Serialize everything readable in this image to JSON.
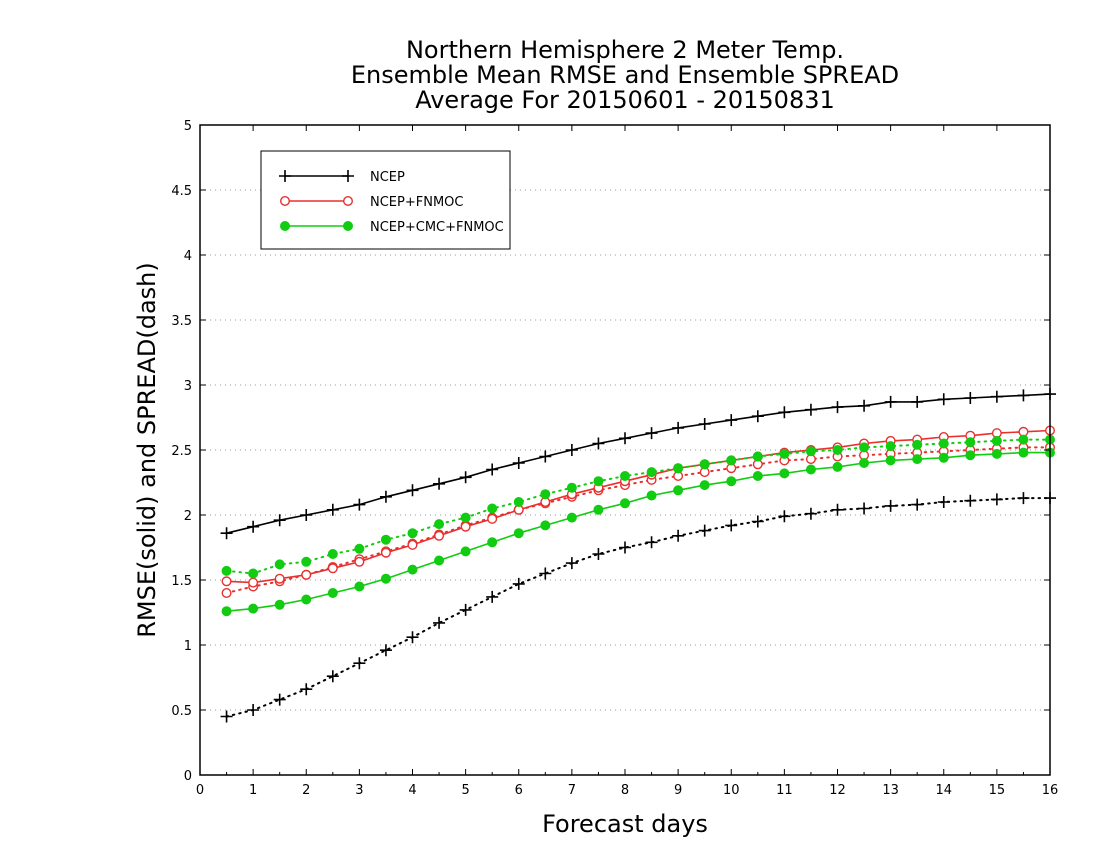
{
  "chart_data": {
    "type": "line",
    "title_lines": [
      "Northern Hemisphere 2 Meter Temp.",
      "Ensemble Mean RMSE and Ensemble SPREAD",
      "Average For 20150601 - 20150831"
    ],
    "xlabel": "Forecast days",
    "ylabel": "RMSE(solid) and SPREAD(dash)",
    "xlim": [
      0,
      16
    ],
    "ylim": [
      0,
      5
    ],
    "x_ticks": [
      "0",
      "1",
      "2",
      "3",
      "4",
      "5",
      "6",
      "7",
      "8",
      "9",
      "10",
      "11",
      "12",
      "13",
      "14",
      "15",
      "16"
    ],
    "y_ticks": [
      "0",
      "0.5",
      "1",
      "1.5",
      "2",
      "2.5",
      "3",
      "3.5",
      "4",
      "4.5",
      "5"
    ],
    "grid": true,
    "legend_position": "top-left",
    "x": [
      0.5,
      1,
      1.5,
      2,
      2.5,
      3,
      3.5,
      4,
      4.5,
      5,
      5.5,
      6,
      6.5,
      7,
      7.5,
      8,
      8.5,
      9,
      9.5,
      10,
      10.5,
      11,
      11.5,
      12,
      12.5,
      13,
      13.5,
      14,
      14.5,
      15,
      15.5,
      16
    ],
    "series": [
      {
        "name": "NCEP",
        "color": "#000000",
        "marker": "plus",
        "rmse": [
          1.86,
          1.91,
          1.96,
          2.0,
          2.04,
          2.08,
          2.14,
          2.19,
          2.24,
          2.29,
          2.35,
          2.4,
          2.45,
          2.5,
          2.55,
          2.59,
          2.63,
          2.67,
          2.7,
          2.73,
          2.76,
          2.79,
          2.81,
          2.83,
          2.84,
          2.87,
          2.87,
          2.89,
          2.9,
          2.91,
          2.92,
          2.93
        ],
        "spread": [
          0.45,
          0.5,
          0.58,
          0.66,
          0.76,
          0.86,
          0.96,
          1.06,
          1.17,
          1.27,
          1.37,
          1.47,
          1.55,
          1.63,
          1.7,
          1.75,
          1.79,
          1.84,
          1.88,
          1.92,
          1.95,
          1.99,
          2.01,
          2.04,
          2.05,
          2.07,
          2.08,
          2.1,
          2.11,
          2.12,
          2.13,
          2.13
        ]
      },
      {
        "name": "NCEP+FNMOC",
        "color": "#e8302f",
        "marker": "open-circle",
        "rmse": [
          1.49,
          1.48,
          1.51,
          1.54,
          1.59,
          1.64,
          1.71,
          1.77,
          1.84,
          1.91,
          1.97,
          2.04,
          2.1,
          2.16,
          2.21,
          2.26,
          2.31,
          2.36,
          2.39,
          2.42,
          2.45,
          2.48,
          2.5,
          2.52,
          2.55,
          2.57,
          2.58,
          2.6,
          2.61,
          2.63,
          2.64,
          2.65
        ],
        "spread": [
          1.4,
          1.45,
          1.49,
          1.54,
          1.6,
          1.66,
          1.72,
          1.78,
          1.85,
          1.92,
          1.98,
          2.04,
          2.09,
          2.14,
          2.19,
          2.23,
          2.27,
          2.3,
          2.33,
          2.36,
          2.39,
          2.42,
          2.43,
          2.45,
          2.46,
          2.47,
          2.48,
          2.49,
          2.5,
          2.51,
          2.52,
          2.52
        ]
      },
      {
        "name": "NCEP+CMC+FNMOC",
        "color": "#11cc11",
        "marker": "filled-circle",
        "rmse": [
          1.26,
          1.28,
          1.31,
          1.35,
          1.4,
          1.45,
          1.51,
          1.58,
          1.65,
          1.72,
          1.79,
          1.86,
          1.92,
          1.98,
          2.04,
          2.09,
          2.15,
          2.19,
          2.23,
          2.26,
          2.3,
          2.32,
          2.35,
          2.37,
          2.4,
          2.42,
          2.43,
          2.44,
          2.46,
          2.47,
          2.48,
          2.48
        ],
        "spread": [
          1.57,
          1.55,
          1.62,
          1.64,
          1.7,
          1.74,
          1.81,
          1.86,
          1.93,
          1.98,
          2.05,
          2.1,
          2.16,
          2.21,
          2.26,
          2.3,
          2.33,
          2.36,
          2.39,
          2.42,
          2.45,
          2.47,
          2.49,
          2.5,
          2.52,
          2.53,
          2.54,
          2.55,
          2.56,
          2.57,
          2.58,
          2.58
        ]
      }
    ]
  }
}
